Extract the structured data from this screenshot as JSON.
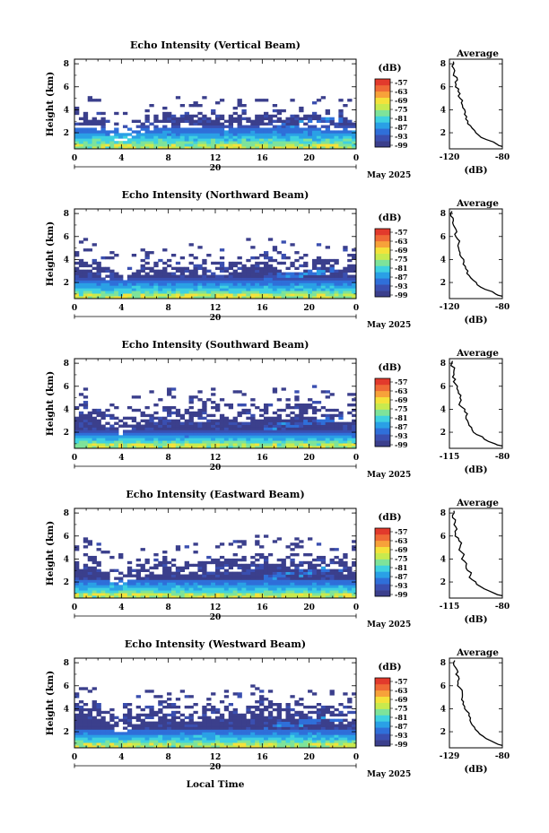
{
  "figure": {
    "xlabel": "Local Time",
    "date_label": "May 2025",
    "day_label": "20"
  },
  "chart_data": [
    {
      "type": "heatmap",
      "title": "Echo Intensity (Vertical Beam)",
      "ylabel": "Height (km)",
      "xlabel": "Local Time",
      "x_ticks": [
        "0",
        "4",
        "8",
        "12",
        "16",
        "20",
        "0"
      ],
      "y_ticks": [
        "2",
        "4",
        "6",
        "8"
      ],
      "xlim": [
        0,
        24
      ],
      "ylim": [
        0.6,
        8.4
      ],
      "colorbar": {
        "unit": "(dB)",
        "ticks": [
          "-57",
          "-63",
          "-69",
          "-75",
          "-81",
          "-87",
          "-93",
          "-99"
        ],
        "range": [
          -99,
          -57
        ]
      },
      "field": {
        "top_profile": [
          3.5,
          3.6,
          3.5,
          2.6,
          2.2,
          2.9,
          3.3,
          3.4,
          3.6,
          3.5,
          3.4,
          3.5,
          3.6,
          3.5,
          3.7,
          3.6,
          3.7,
          3.5,
          3.6,
          3.7,
          3.6,
          3.5,
          3.4,
          3.2,
          3.4
        ],
        "band_height": 1.6,
        "speckle": 0.35,
        "seed": 11
      },
      "average": {
        "title": "Average",
        "xlabel": "(dB)",
        "x_ticks": [
          "-120",
          "-80"
        ],
        "y_ticks": [
          "2",
          "4",
          "6",
          "8"
        ],
        "xlim": [
          -120,
          -80
        ],
        "ylim": [
          0.6,
          8.4
        ],
        "profile": [
          [
            0.8,
            -80
          ],
          [
            1.0,
            -84
          ],
          [
            1.4,
            -92
          ],
          [
            1.8,
            -98
          ],
          [
            2.2,
            -101
          ],
          [
            2.6,
            -104
          ],
          [
            3.0,
            -106
          ],
          [
            3.4,
            -107
          ],
          [
            3.8,
            -108
          ],
          [
            4.2,
            -110
          ],
          [
            4.6,
            -111
          ],
          [
            5.0,
            -112
          ],
          [
            5.4,
            -112
          ],
          [
            5.8,
            -113
          ],
          [
            6.2,
            -115
          ],
          [
            6.6,
            -114
          ],
          [
            7.0,
            -117
          ],
          [
            7.4,
            -116
          ],
          [
            7.8,
            -118
          ],
          [
            8.2,
            -117
          ]
        ]
      }
    },
    {
      "type": "heatmap",
      "title": "Echo Intensity (Northward Beam)",
      "ylabel": "Height (km)",
      "xlabel": "Local Time",
      "x_ticks": [
        "0",
        "4",
        "8",
        "12",
        "16",
        "20",
        "0"
      ],
      "y_ticks": [
        "2",
        "4",
        "6",
        "8"
      ],
      "xlim": [
        0,
        24
      ],
      "ylim": [
        0.6,
        8.4
      ],
      "colorbar": {
        "unit": "(dB)",
        "ticks": [
          "-57",
          "-63",
          "-69",
          "-75",
          "-81",
          "-87",
          "-93",
          "-99"
        ],
        "range": [
          -99,
          -57
        ]
      },
      "field": {
        "top_profile": [
          4.2,
          4.4,
          4.0,
          3.2,
          3.0,
          3.5,
          3.7,
          3.8,
          3.9,
          3.8,
          3.9,
          4.0,
          3.9,
          3.8,
          4.1,
          4.3,
          4.5,
          4.2,
          4.0,
          4.1,
          4.2,
          4.0,
          3.9,
          3.8,
          4.0
        ],
        "band_height": 1.4,
        "speckle": 0.4,
        "seed": 23
      },
      "average": {
        "title": "Average",
        "xlabel": "(dB)",
        "x_ticks": [
          "-120",
          "-80"
        ],
        "y_ticks": [
          "2",
          "4",
          "6",
          "8"
        ],
        "xlim": [
          -120,
          -80
        ],
        "ylim": [
          0.6,
          8.4
        ],
        "profile": [
          [
            0.8,
            -80
          ],
          [
            1.0,
            -85
          ],
          [
            1.4,
            -93
          ],
          [
            1.8,
            -99
          ],
          [
            2.2,
            -102
          ],
          [
            2.6,
            -105
          ],
          [
            3.0,
            -106
          ],
          [
            3.4,
            -108
          ],
          [
            3.8,
            -109
          ],
          [
            4.2,
            -111
          ],
          [
            4.6,
            -112
          ],
          [
            5.0,
            -113
          ],
          [
            5.4,
            -113
          ],
          [
            5.8,
            -114
          ],
          [
            6.2,
            -116
          ],
          [
            6.6,
            -115
          ],
          [
            7.0,
            -117
          ],
          [
            7.4,
            -117
          ],
          [
            7.8,
            -119
          ],
          [
            8.2,
            -118
          ]
        ]
      }
    },
    {
      "type": "heatmap",
      "title": "Echo Intensity (Southward Beam)",
      "ylabel": "Height (km)",
      "xlabel": "Local Time",
      "x_ticks": [
        "0",
        "4",
        "8",
        "12",
        "16",
        "20",
        "0"
      ],
      "y_ticks": [
        "2",
        "4",
        "6",
        "8"
      ],
      "xlim": [
        0,
        24
      ],
      "ylim": [
        0.6,
        8.4
      ],
      "colorbar": {
        "unit": "(dB)",
        "ticks": [
          "-57",
          "-63",
          "-69",
          "-75",
          "-81",
          "-87",
          "-93",
          "-99"
        ],
        "range": [
          -99,
          -57
        ]
      },
      "field": {
        "top_profile": [
          4.4,
          4.6,
          4.2,
          3.4,
          3.0,
          3.6,
          4.0,
          4.0,
          4.3,
          4.2,
          4.1,
          4.2,
          4.3,
          4.4,
          4.2,
          4.1,
          4.4,
          4.6,
          4.3,
          4.5,
          4.6,
          4.3,
          4.2,
          4.0,
          4.4
        ],
        "band_height": 1.2,
        "speckle": 0.45,
        "seed": 37
      },
      "average": {
        "title": "Average",
        "xlabel": "(dB)",
        "x_ticks": [
          "-115",
          "-80"
        ],
        "y_ticks": [
          "2",
          "4",
          "6",
          "8"
        ],
        "xlim": [
          -115,
          -80
        ],
        "ylim": [
          0.6,
          8.4
        ],
        "profile": [
          [
            0.8,
            -80
          ],
          [
            1.0,
            -85
          ],
          [
            1.4,
            -92
          ],
          [
            1.8,
            -97
          ],
          [
            2.2,
            -100
          ],
          [
            2.6,
            -102
          ],
          [
            3.0,
            -103
          ],
          [
            3.4,
            -104
          ],
          [
            3.8,
            -105
          ],
          [
            4.2,
            -107
          ],
          [
            4.6,
            -108
          ],
          [
            5.0,
            -108
          ],
          [
            5.4,
            -109
          ],
          [
            5.8,
            -110
          ],
          [
            6.2,
            -111
          ],
          [
            6.6,
            -111
          ],
          [
            7.0,
            -112
          ],
          [
            7.4,
            -112
          ],
          [
            7.8,
            -114
          ],
          [
            8.2,
            -113
          ]
        ]
      }
    },
    {
      "type": "heatmap",
      "title": "Echo Intensity (Eastward Beam)",
      "ylabel": "Height (km)",
      "xlabel": "Local Time",
      "x_ticks": [
        "0",
        "4",
        "8",
        "12",
        "16",
        "20",
        "0"
      ],
      "y_ticks": [
        "2",
        "4",
        "6",
        "8"
      ],
      "xlim": [
        0,
        24
      ],
      "ylim": [
        0.6,
        8.4
      ],
      "colorbar": {
        "unit": "(dB)",
        "ticks": [
          "-57",
          "-63",
          "-69",
          "-75",
          "-81",
          "-87",
          "-93",
          "-99"
        ],
        "range": [
          -99,
          -57
        ]
      },
      "field": {
        "top_profile": [
          4.2,
          4.4,
          4.0,
          3.1,
          2.9,
          3.4,
          3.8,
          3.9,
          4.0,
          3.9,
          3.8,
          4.0,
          4.1,
          4.0,
          4.1,
          4.3,
          4.6,
          4.4,
          4.2,
          4.3,
          4.2,
          4.1,
          3.9,
          3.8,
          4.1
        ],
        "band_height": 1.3,
        "speckle": 0.4,
        "seed": 51
      },
      "average": {
        "title": "Average",
        "xlabel": "(dB)",
        "x_ticks": [
          "-115",
          "-80"
        ],
        "y_ticks": [
          "2",
          "4",
          "6",
          "8"
        ],
        "xlim": [
          -115,
          -80
        ],
        "ylim": [
          0.6,
          8.4
        ],
        "profile": [
          [
            0.8,
            -80
          ],
          [
            1.0,
            -85
          ],
          [
            1.4,
            -92
          ],
          [
            1.8,
            -97
          ],
          [
            2.2,
            -100
          ],
          [
            2.6,
            -101
          ],
          [
            3.0,
            -103
          ],
          [
            3.4,
            -104
          ],
          [
            3.8,
            -105
          ],
          [
            4.2,
            -106
          ],
          [
            4.6,
            -107
          ],
          [
            5.0,
            -108
          ],
          [
            5.4,
            -107
          ],
          [
            5.8,
            -109
          ],
          [
            6.2,
            -111
          ],
          [
            6.6,
            -110
          ],
          [
            7.0,
            -112
          ],
          [
            7.4,
            -111
          ],
          [
            7.8,
            -113
          ],
          [
            8.2,
            -112
          ]
        ]
      }
    },
    {
      "type": "heatmap",
      "title": "Echo Intensity (Westward Beam)",
      "ylabel": "Height (km)",
      "xlabel": "Local Time",
      "x_ticks": [
        "0",
        "4",
        "8",
        "12",
        "16",
        "20",
        "0"
      ],
      "y_ticks": [
        "2",
        "4",
        "6",
        "8"
      ],
      "xlim": [
        0,
        24
      ],
      "ylim": [
        0.6,
        8.4
      ],
      "colorbar": {
        "unit": "(dB)",
        "ticks": [
          "-57",
          "-63",
          "-69",
          "-75",
          "-81",
          "-87",
          "-93",
          "-99"
        ],
        "range": [
          -99,
          -57
        ]
      },
      "field": {
        "top_profile": [
          4.6,
          4.8,
          4.3,
          3.5,
          3.1,
          3.7,
          4.2,
          4.0,
          4.3,
          4.1,
          4.0,
          4.2,
          4.4,
          4.3,
          4.2,
          4.4,
          4.7,
          4.5,
          4.3,
          4.4,
          4.5,
          4.2,
          4.0,
          3.9,
          4.3
        ],
        "band_height": 1.3,
        "speckle": 0.42,
        "seed": 73
      },
      "average": {
        "title": "Average",
        "xlabel": "(dB)",
        "x_ticks": [
          "-129",
          "-80"
        ],
        "y_ticks": [
          "2",
          "4",
          "6",
          "8"
        ],
        "xlim": [
          -129,
          -80
        ],
        "ylim": [
          0.6,
          8.4
        ],
        "profile": [
          [
            0.8,
            -80
          ],
          [
            1.0,
            -86
          ],
          [
            1.4,
            -95
          ],
          [
            1.8,
            -101
          ],
          [
            2.2,
            -105
          ],
          [
            2.6,
            -108
          ],
          [
            3.0,
            -110
          ],
          [
            3.4,
            -111
          ],
          [
            3.8,
            -113
          ],
          [
            4.2,
            -115
          ],
          [
            4.6,
            -116
          ],
          [
            5.0,
            -117
          ],
          [
            5.4,
            -117
          ],
          [
            5.8,
            -119
          ],
          [
            6.2,
            -121
          ],
          [
            6.6,
            -120
          ],
          [
            7.0,
            -123
          ],
          [
            7.4,
            -122
          ],
          [
            7.8,
            -125
          ],
          [
            8.2,
            -124
          ]
        ]
      }
    }
  ],
  "colors": {
    "colormap": [
      "#3b3f8c",
      "#3a4fb0",
      "#2f6fd9",
      "#2aa0e6",
      "#3fd1e0",
      "#7ee39a",
      "#c8ea4e",
      "#f4e23a",
      "#f7a23a",
      "#ef6a36",
      "#e23a2c"
    ]
  }
}
